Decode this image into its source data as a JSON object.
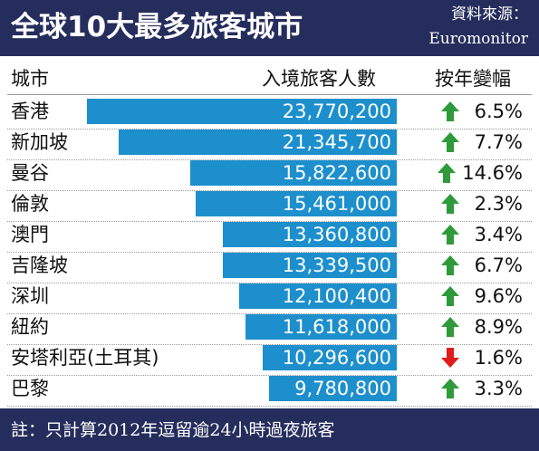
{
  "header": {
    "title": "全球10大最多旅客城市",
    "source_label": "資料來源：",
    "source_name": "Euromonitor"
  },
  "columns": {
    "city": "城市",
    "arrivals": "入境旅客人數",
    "change": "按年變幅"
  },
  "footer": {
    "note": "註：只計算2012年逗留逾24小時過夜旅客"
  },
  "colors": {
    "header_bg": "#242d5c",
    "bar": "#1d8fcc",
    "arrow_up": "#2e9a3a",
    "arrow_down": "#e11b1b"
  },
  "chart_data": {
    "type": "bar",
    "orientation": "horizontal",
    "title": "全球10大最多旅客城市",
    "categories": [
      "香港",
      "新加坡",
      "曼谷",
      "倫敦",
      "澳門",
      "吉隆坡",
      "深圳",
      "紐約",
      "安塔利亞(土耳其)",
      "巴黎"
    ],
    "series": [
      {
        "name": "入境旅客人數",
        "values": [
          23770200,
          21345700,
          15822600,
          15461000,
          13360800,
          13339500,
          12100400,
          11618000,
          10296600,
          9780800
        ],
        "labels": [
          "23,770,200",
          "21,345,700",
          "15,822,600",
          "15,461,000",
          "13,360,800",
          "13,339,500",
          "12,100,400",
          "11,618,000",
          "10,296,600",
          "9,780,800"
        ]
      }
    ],
    "change": [
      {
        "direction": "up",
        "label": "6.5%"
      },
      {
        "direction": "up",
        "label": "7.7%"
      },
      {
        "direction": "up",
        "label": "14.6%"
      },
      {
        "direction": "up",
        "label": "2.3%"
      },
      {
        "direction": "up",
        "label": "3.4%"
      },
      {
        "direction": "up",
        "label": "6.7%"
      },
      {
        "direction": "up",
        "label": "9.6%"
      },
      {
        "direction": "up",
        "label": "8.9%"
      },
      {
        "direction": "down",
        "label": "1.6%"
      },
      {
        "direction": "up",
        "label": "3.3%"
      }
    ]
  }
}
